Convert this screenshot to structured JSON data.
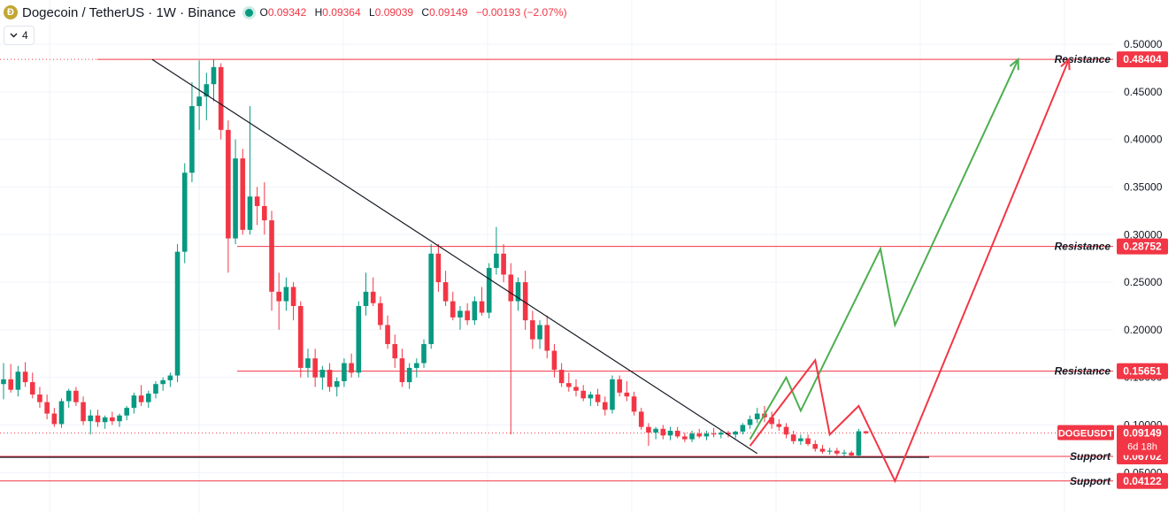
{
  "header": {
    "coin_glyph": "Ð",
    "symbol_title": "Dogecoin / TetherUS · 1W · Binance",
    "o_label": "O",
    "o": "0.09342",
    "h_label": "H",
    "h": "0.09364",
    "l_label": "L",
    "l": "0.09039",
    "c_label": "C",
    "c": "0.09149",
    "change": "−0.00193 (−2.07%)",
    "status_color": "#089981"
  },
  "indicator_toggle": {
    "icon": "chevron-down-icon",
    "count": "4"
  },
  "colors": {
    "up": "#089981",
    "down": "#f23645",
    "level": "#f23645",
    "trend": "#131722",
    "projection_green": "#4caf50",
    "projection_red": "#f23645",
    "grid": "#f0f3fa"
  },
  "chart_data": {
    "type": "candlestick",
    "symbol": "DOGEUSDT",
    "interval": "1W",
    "y_axis": {
      "ticks": [
        0.05,
        0.1,
        0.15,
        0.2,
        0.25,
        0.3,
        0.35,
        0.4,
        0.45,
        0.5
      ],
      "tick_labels": [
        "0.05000",
        "0.10000",
        "0.15000",
        "0.20000",
        "0.25000",
        "0.30000",
        "0.35000",
        "0.40000",
        "0.45000",
        "0.50000"
      ],
      "range": [
        0.03,
        0.515
      ]
    },
    "last_price": {
      "label": "DOGEUSDT",
      "value": "0.09149",
      "countdown": "6d 18h",
      "price": 0.09149
    },
    "levels": [
      {
        "name": "Resistance",
        "value": 0.48404,
        "label": "0.48404"
      },
      {
        "name": "Resistance",
        "value": 0.28752,
        "label": "0.28752"
      },
      {
        "name": "Resistance",
        "value": 0.15651,
        "label": "0.15651"
      },
      {
        "name": "Support",
        "value": 0.06702,
        "label": "0.06702"
      },
      {
        "name": "Support",
        "value": 0.04122,
        "label": "0.04122"
      }
    ],
    "trendline": {
      "from": [
        0,
        0.484
      ],
      "to": [
        104,
        0.07
      ]
    },
    "projection_green": [
      [
        103,
        0.085
      ],
      [
        108,
        0.15
      ],
      [
        110,
        0.115
      ],
      [
        121,
        0.285
      ],
      [
        123,
        0.205
      ],
      [
        140,
        0.484
      ]
    ],
    "projection_red": [
      [
        103,
        0.078
      ],
      [
        112,
        0.168
      ],
      [
        114,
        0.09
      ],
      [
        118,
        0.12
      ],
      [
        123,
        0.04122
      ],
      [
        147,
        0.484
      ]
    ],
    "candles": [
      [
        0.143,
        0.165,
        0.127,
        0.148
      ],
      [
        0.148,
        0.164,
        0.134,
        0.137
      ],
      [
        0.137,
        0.162,
        0.13,
        0.156
      ],
      [
        0.156,
        0.166,
        0.14,
        0.145
      ],
      [
        0.145,
        0.155,
        0.128,
        0.132
      ],
      [
        0.132,
        0.14,
        0.118,
        0.124
      ],
      [
        0.124,
        0.132,
        0.106,
        0.112
      ],
      [
        0.112,
        0.118,
        0.098,
        0.101
      ],
      [
        0.101,
        0.128,
        0.097,
        0.125
      ],
      [
        0.125,
        0.138,
        0.118,
        0.136
      ],
      [
        0.136,
        0.14,
        0.12,
        0.124
      ],
      [
        0.124,
        0.13,
        0.1,
        0.104
      ],
      [
        0.104,
        0.116,
        0.09,
        0.11
      ],
      [
        0.11,
        0.116,
        0.098,
        0.103
      ],
      [
        0.103,
        0.11,
        0.096,
        0.108
      ],
      [
        0.108,
        0.114,
        0.1,
        0.104
      ],
      [
        0.104,
        0.112,
        0.098,
        0.11
      ],
      [
        0.11,
        0.12,
        0.105,
        0.118
      ],
      [
        0.118,
        0.134,
        0.112,
        0.131
      ],
      [
        0.131,
        0.142,
        0.12,
        0.124
      ],
      [
        0.124,
        0.136,
        0.118,
        0.133
      ],
      [
        0.133,
        0.146,
        0.128,
        0.143
      ],
      [
        0.143,
        0.15,
        0.136,
        0.147
      ],
      [
        0.147,
        0.155,
        0.14,
        0.152
      ],
      [
        0.152,
        0.29,
        0.145,
        0.282
      ],
      [
        0.282,
        0.375,
        0.27,
        0.365
      ],
      [
        0.365,
        0.46,
        0.355,
        0.435
      ],
      [
        0.435,
        0.483,
        0.41,
        0.445
      ],
      [
        0.445,
        0.47,
        0.42,
        0.458
      ],
      [
        0.458,
        0.484,
        0.44,
        0.476
      ],
      [
        0.476,
        0.48,
        0.4,
        0.41
      ],
      [
        0.41,
        0.42,
        0.26,
        0.296
      ],
      [
        0.296,
        0.4,
        0.29,
        0.38
      ],
      [
        0.38,
        0.39,
        0.3,
        0.305
      ],
      [
        0.305,
        0.435,
        0.3,
        0.34
      ],
      [
        0.34,
        0.35,
        0.31,
        0.33
      ],
      [
        0.33,
        0.355,
        0.3,
        0.315
      ],
      [
        0.315,
        0.325,
        0.22,
        0.24
      ],
      [
        0.24,
        0.26,
        0.2,
        0.23
      ],
      [
        0.23,
        0.255,
        0.22,
        0.245
      ],
      [
        0.245,
        0.25,
        0.21,
        0.225
      ],
      [
        0.225,
        0.23,
        0.15,
        0.16
      ],
      [
        0.16,
        0.18,
        0.15,
        0.17
      ],
      [
        0.17,
        0.18,
        0.14,
        0.15
      ],
      [
        0.15,
        0.162,
        0.137,
        0.158
      ],
      [
        0.158,
        0.165,
        0.135,
        0.14
      ],
      [
        0.14,
        0.15,
        0.13,
        0.146
      ],
      [
        0.146,
        0.17,
        0.14,
        0.165
      ],
      [
        0.165,
        0.175,
        0.15,
        0.155
      ],
      [
        0.155,
        0.23,
        0.15,
        0.225
      ],
      [
        0.225,
        0.26,
        0.215,
        0.24
      ],
      [
        0.24,
        0.255,
        0.225,
        0.228
      ],
      [
        0.228,
        0.235,
        0.2,
        0.205
      ],
      [
        0.205,
        0.215,
        0.18,
        0.185
      ],
      [
        0.185,
        0.195,
        0.16,
        0.17
      ],
      [
        0.17,
        0.18,
        0.14,
        0.145
      ],
      [
        0.145,
        0.165,
        0.138,
        0.16
      ],
      [
        0.16,
        0.17,
        0.15,
        0.165
      ],
      [
        0.165,
        0.19,
        0.16,
        0.185
      ],
      [
        0.185,
        0.29,
        0.18,
        0.28
      ],
      [
        0.28,
        0.29,
        0.24,
        0.25
      ],
      [
        0.25,
        0.262,
        0.225,
        0.23
      ],
      [
        0.23,
        0.24,
        0.21,
        0.213
      ],
      [
        0.213,
        0.225,
        0.2,
        0.22
      ],
      [
        0.22,
        0.228,
        0.205,
        0.21
      ],
      [
        0.21,
        0.235,
        0.205,
        0.23
      ],
      [
        0.23,
        0.245,
        0.215,
        0.218
      ],
      [
        0.218,
        0.27,
        0.212,
        0.265
      ],
      [
        0.265,
        0.308,
        0.258,
        0.28
      ],
      [
        0.28,
        0.29,
        0.25,
        0.258
      ],
      [
        0.258,
        0.27,
        0.09,
        0.23
      ],
      [
        0.23,
        0.255,
        0.22,
        0.25
      ],
      [
        0.25,
        0.262,
        0.2,
        0.21
      ],
      [
        0.21,
        0.22,
        0.18,
        0.19
      ],
      [
        0.19,
        0.21,
        0.18,
        0.205
      ],
      [
        0.205,
        0.215,
        0.17,
        0.178
      ],
      [
        0.178,
        0.185,
        0.15,
        0.158
      ],
      [
        0.158,
        0.165,
        0.14,
        0.144
      ],
      [
        0.144,
        0.155,
        0.135,
        0.14
      ],
      [
        0.14,
        0.148,
        0.13,
        0.136
      ],
      [
        0.136,
        0.142,
        0.125,
        0.128
      ],
      [
        0.128,
        0.135,
        0.12,
        0.132
      ],
      [
        0.132,
        0.138,
        0.12,
        0.124
      ],
      [
        0.124,
        0.13,
        0.11,
        0.116
      ],
      [
        0.116,
        0.152,
        0.112,
        0.148
      ],
      [
        0.148,
        0.152,
        0.13,
        0.134
      ],
      [
        0.134,
        0.146,
        0.125,
        0.13
      ],
      [
        0.13,
        0.135,
        0.11,
        0.114
      ],
      [
        0.114,
        0.118,
        0.095,
        0.098
      ],
      [
        0.098,
        0.102,
        0.078,
        0.092
      ],
      [
        0.092,
        0.098,
        0.085,
        0.096
      ],
      [
        0.096,
        0.1,
        0.085,
        0.089
      ],
      [
        0.089,
        0.098,
        0.084,
        0.094
      ],
      [
        0.094,
        0.098,
        0.086,
        0.088
      ],
      [
        0.088,
        0.092,
        0.082,
        0.085
      ],
      [
        0.085,
        0.094,
        0.082,
        0.091
      ],
      [
        0.091,
        0.096,
        0.086,
        0.088
      ],
      [
        0.088,
        0.094,
        0.084,
        0.091
      ],
      [
        0.091,
        0.097,
        0.087,
        0.09
      ],
      [
        0.09,
        0.094,
        0.086,
        0.092
      ],
      [
        0.092,
        0.094,
        0.087,
        0.09
      ],
      [
        0.09,
        0.094,
        0.086,
        0.093
      ],
      [
        0.093,
        0.102,
        0.09,
        0.1
      ],
      [
        0.1,
        0.11,
        0.096,
        0.106
      ],
      [
        0.106,
        0.118,
        0.102,
        0.112
      ],
      [
        0.112,
        0.12,
        0.103,
        0.108
      ],
      [
        0.108,
        0.114,
        0.096,
        0.101
      ],
      [
        0.101,
        0.106,
        0.094,
        0.098
      ],
      [
        0.098,
        0.102,
        0.086,
        0.09
      ],
      [
        0.09,
        0.094,
        0.08,
        0.083
      ],
      [
        0.083,
        0.09,
        0.079,
        0.086
      ],
      [
        0.086,
        0.09,
        0.078,
        0.08
      ],
      [
        0.08,
        0.084,
        0.072,
        0.075
      ],
      [
        0.075,
        0.079,
        0.07,
        0.072
      ],
      [
        0.072,
        0.076,
        0.069,
        0.073
      ],
      [
        0.073,
        0.076,
        0.068,
        0.07
      ],
      [
        0.07,
        0.074,
        0.067,
        0.071
      ],
      [
        0.071,
        0.073,
        0.067,
        0.068
      ],
      [
        0.068,
        0.096,
        0.067,
        0.0934
      ],
      [
        0.09342,
        0.09364,
        0.09039,
        0.09149
      ]
    ]
  }
}
